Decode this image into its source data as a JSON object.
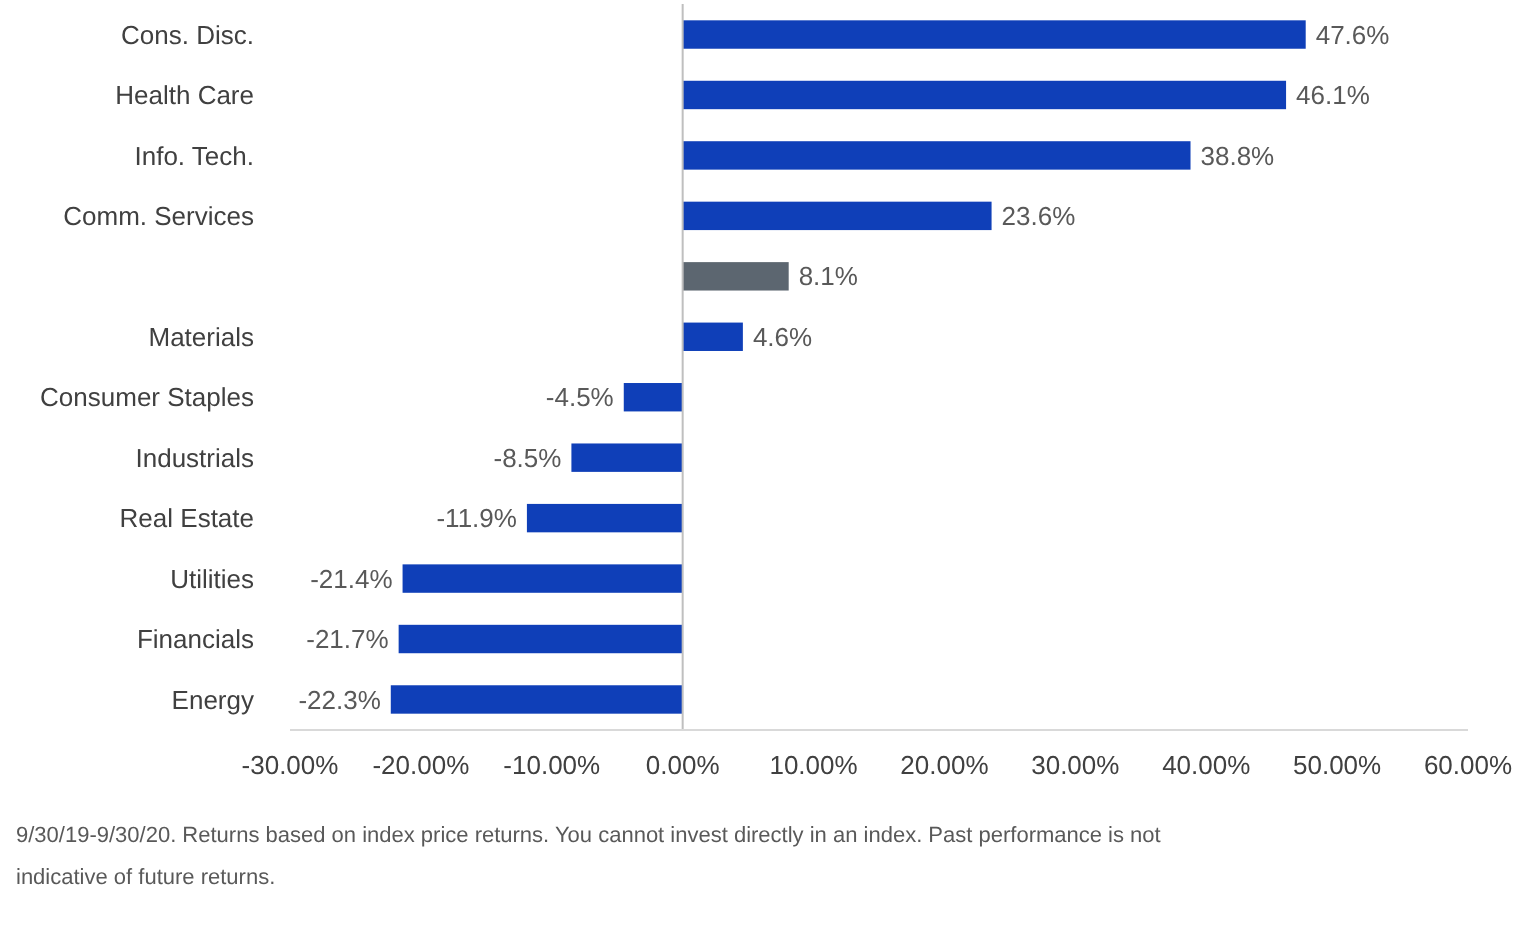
{
  "chart_data": {
    "type": "bar",
    "orientation": "horizontal",
    "categories": [
      "Cons. Disc.",
      "Health Care",
      "Info. Tech.",
      "Comm. Services",
      null,
      "Materials",
      "Consumer Staples",
      "Industrials",
      "Real Estate",
      "Utilities",
      "Financials",
      "Energy"
    ],
    "values": [
      47.6,
      46.1,
      38.8,
      23.6,
      8.1,
      4.6,
      -4.5,
      -8.5,
      -11.9,
      -21.4,
      -21.7,
      -22.3
    ],
    "colors": [
      "#0f3fb8",
      "#0f3fb8",
      "#0f3fb8",
      "#0f3fb8",
      "#5c6670",
      "#0f3fb8",
      "#0f3fb8",
      "#0f3fb8",
      "#0f3fb8",
      "#0f3fb8",
      "#0f3fb8",
      "#0f3fb8"
    ],
    "value_labels": [
      "47.6%",
      "46.1%",
      "38.8%",
      "23.6%",
      "8.1%",
      "4.6%",
      "-4.5%",
      "-8.5%",
      "-11.9%",
      "-21.4%",
      "-21.7%",
      "-22.3%"
    ],
    "xlim": [
      -30,
      60
    ],
    "xticks": [
      {
        "value": -30,
        "label": "-30.00%"
      },
      {
        "value": -20,
        "label": "-20.00%"
      },
      {
        "value": -10,
        "label": "-10.00%"
      },
      {
        "value": 0,
        "label": "0.00%"
      },
      {
        "value": 10,
        "label": "10.00%"
      },
      {
        "value": 20,
        "label": "20.00%"
      },
      {
        "value": 30,
        "label": "30.00%"
      },
      {
        "value": 40,
        "label": "40.00%"
      },
      {
        "value": 50,
        "label": "50.00%"
      },
      {
        "value": 60,
        "label": "60.00%"
      }
    ],
    "annotations": [
      "9/30/19-9/30/20. Returns based on index price returns. You cannot invest directly in an index. Past performance is not indicative of future returns."
    ]
  }
}
